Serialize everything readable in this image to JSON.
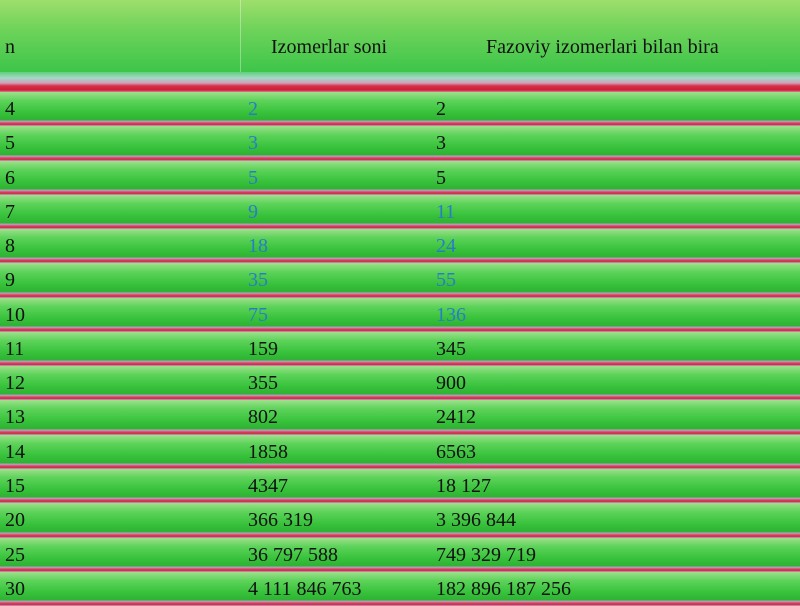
{
  "table": {
    "header": [
      "n",
      "Izomerlar soni",
      "Fazoviy izomerlari bilan bira"
    ],
    "rows": [
      [
        "4",
        "2",
        "2"
      ],
      [
        "5",
        "3",
        "3"
      ],
      [
        "6",
        "5",
        "5"
      ],
      [
        "7",
        "9",
        "11"
      ],
      [
        "8",
        "18",
        "24"
      ],
      [
        "9",
        "35",
        "55"
      ],
      [
        "10",
        "75",
        "136"
      ],
      [
        "11",
        "159",
        "345"
      ],
      [
        "12",
        "355",
        "900"
      ],
      [
        "13",
        "802",
        "2412"
      ],
      [
        "14",
        "1858",
        "6563"
      ],
      [
        "15",
        "4347",
        "18 127"
      ],
      [
        "20",
        "366 319",
        "3 396 844"
      ],
      [
        "25",
        "36 797 588",
        "749 329 719"
      ],
      [
        "30",
        "4 111 846 763",
        "182 896 187 256"
      ]
    ]
  }
}
